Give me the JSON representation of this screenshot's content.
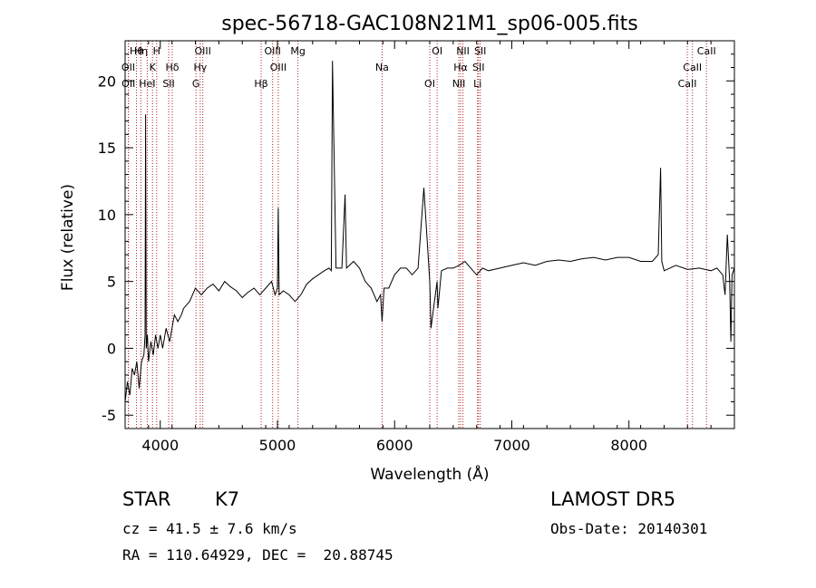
{
  "chart_data": {
    "type": "line",
    "title": "spec-56718-GAC108N21M1_sp06-005.fits",
    "xlabel": "Wavelength (Å)",
    "ylabel": "Flux (relative)",
    "xlim": [
      3700,
      8900
    ],
    "ylim": [
      -6,
      23
    ],
    "xticks": [
      4000,
      5000,
      6000,
      7000,
      8000
    ],
    "yticks": [
      -5,
      0,
      5,
      10,
      15,
      20
    ],
    "grid": false,
    "series": [
      {
        "x": [
          3700,
          3720,
          3740,
          3760,
          3780,
          3800,
          3820,
          3840,
          3860,
          3870,
          3875,
          3880,
          3890,
          3900,
          3920,
          3940,
          3960,
          3980,
          4000,
          4020,
          4050,
          4080,
          4100,
          4120,
          4150,
          4180,
          4200,
          4250,
          4300,
          4350,
          4400,
          4450,
          4500,
          4550,
          4600,
          4650,
          4700,
          4750,
          4800,
          4850,
          4900,
          4950,
          4980,
          5000,
          5007,
          5015,
          5050,
          5100,
          5150,
          5200,
          5250,
          5300,
          5350,
          5400,
          5440,
          5460,
          5470,
          5500,
          5550,
          5577,
          5590,
          5650,
          5700,
          5750,
          5800,
          5850,
          5880,
          5893,
          5910,
          5950,
          6000,
          6050,
          6100,
          6150,
          6200,
          6250,
          6300,
          6310,
          6363,
          6370,
          6400,
          6450,
          6500,
          6550,
          6600,
          6650,
          6700,
          6750,
          6800,
          6900,
          7000,
          7100,
          7200,
          7300,
          7400,
          7500,
          7600,
          7700,
          7800,
          7900,
          8000,
          8100,
          8200,
          8250,
          8270,
          8280,
          8300,
          8400,
          8500,
          8600,
          8700,
          8750,
          8800,
          8820,
          8840,
          8860,
          8870,
          8880,
          8900
        ],
        "y": [
          -4,
          -2.5,
          -3.5,
          -1.5,
          -2,
          -1,
          -3,
          -1,
          -0.5,
          1,
          17.5,
          0,
          1,
          -1,
          0.5,
          -0.5,
          1,
          0,
          1,
          0,
          1.5,
          0.5,
          1.5,
          2.5,
          2,
          2.5,
          3,
          3.5,
          4.5,
          4,
          4.5,
          4.8,
          4.3,
          5,
          4.6,
          4.3,
          3.8,
          4.2,
          4.5,
          4,
          4.5,
          5,
          4,
          4.5,
          10.5,
          4,
          4.3,
          4,
          3.5,
          4,
          4.8,
          5.2,
          5.5,
          5.8,
          6,
          5.8,
          21.5,
          6,
          6,
          11.5,
          6,
          6.5,
          6,
          5,
          4.5,
          3.5,
          4,
          2,
          4.5,
          4.5,
          5.5,
          6,
          6,
          5.5,
          6,
          12,
          5,
          1.5,
          5,
          3,
          5.8,
          6,
          6,
          6.2,
          6.5,
          6,
          5.5,
          6,
          5.8,
          6,
          6.2,
          6.4,
          6.2,
          6.5,
          6.6,
          6.5,
          6.7,
          6.8,
          6.6,
          6.8,
          6.8,
          6.5,
          6.5,
          7,
          13.5,
          6.5,
          5.8,
          6.2,
          5.9,
          6,
          5.8,
          6,
          5.5,
          4,
          8.5,
          5,
          0.5,
          5.5,
          6
        ]
      }
    ],
    "line_markers": [
      {
        "label": "Hθ",
        "x": 3797
      },
      {
        "label": "OII",
        "x": 3727
      },
      {
        "label": "OII",
        "x": 3729
      },
      {
        "label": "Hη",
        "x": 3835
      },
      {
        "label": "K",
        "x": 3934
      },
      {
        "label": "HeI",
        "x": 3889
      },
      {
        "label": "H",
        "x": 3969
      },
      {
        "label": "Hδ",
        "x": 4102
      },
      {
        "label": "SII",
        "x": 4072
      },
      {
        "label": "OIII",
        "x": 4363
      },
      {
        "label": "Hγ",
        "x": 4341
      },
      {
        "label": "G",
        "x": 4305
      },
      {
        "label": "OIII",
        "x": 4959
      },
      {
        "label": "OIII",
        "x": 5007
      },
      {
        "label": "Hβ",
        "x": 4861
      },
      {
        "label": "Mg",
        "x": 5175
      },
      {
        "label": "Na",
        "x": 5893
      },
      {
        "label": "OI",
        "x": 6300
      },
      {
        "label": "OI",
        "x": 6363
      },
      {
        "label": "Hα",
        "x": 6563
      },
      {
        "label": "NII",
        "x": 6548
      },
      {
        "label": "NII",
        "x": 6583
      },
      {
        "label": "SII",
        "x": 6716
      },
      {
        "label": "Li",
        "x": 6708
      },
      {
        "label": "SII",
        "x": 6731
      },
      {
        "label": "CaII",
        "x": 8542
      },
      {
        "label": "CaII",
        "x": 8498
      },
      {
        "label": "CaII",
        "x": 8662
      }
    ]
  },
  "info": {
    "class_label": "STAR",
    "subclass": "K7",
    "cz_text": "cz = 41.5 ± 7.6 km/s",
    "radec_text": "RA = 110.64929, DEC =  20.88745",
    "survey": "LAMOST DR5",
    "obsdate_text": "Obs-Date: 20140301"
  },
  "colors": {
    "axis": "#000000",
    "spectrum": "#000000",
    "marker_line": "#b22222"
  }
}
